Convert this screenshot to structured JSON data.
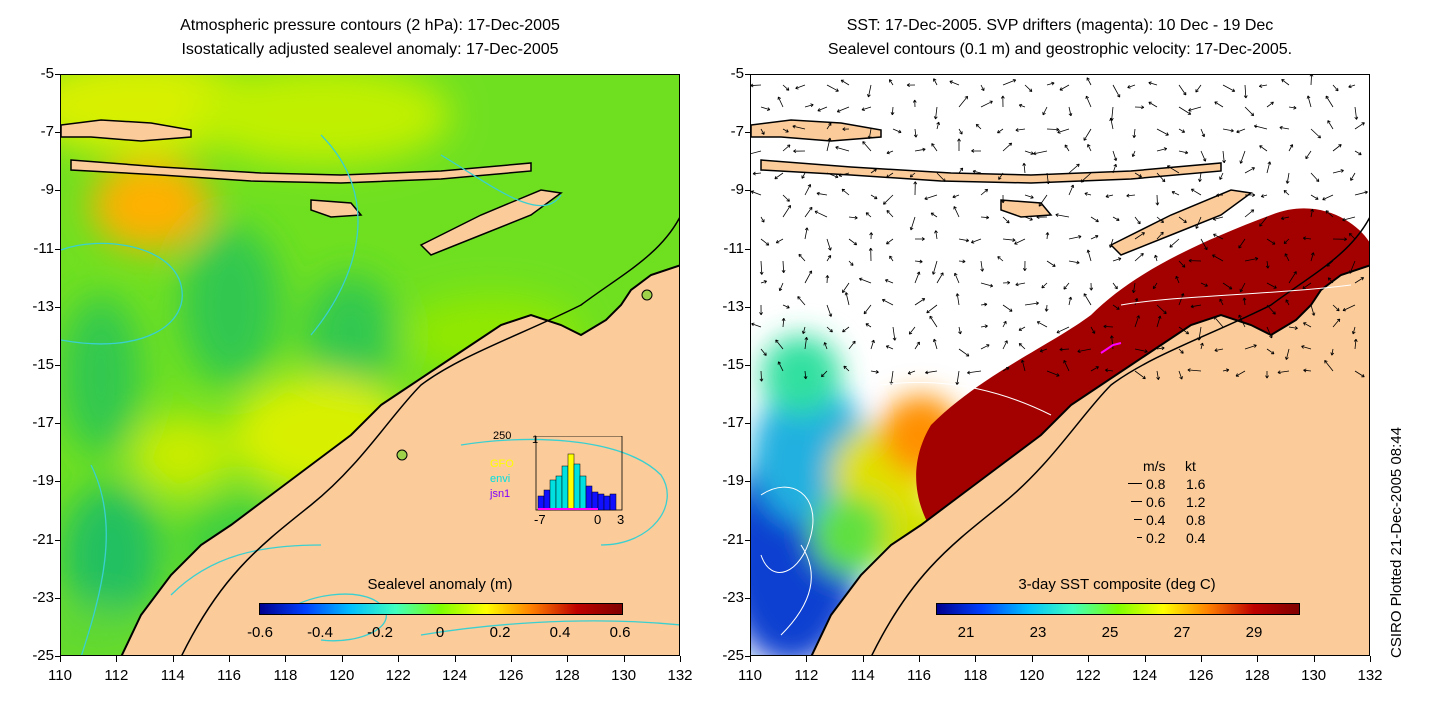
{
  "left_panel": {
    "title_line1": "Atmospheric pressure contours (2 hPa): 17-Dec-2005",
    "title_line2": "Isostatically adjusted sealevel anomaly: 17-Dec-2005",
    "colorbar": {
      "label": "Sealevel anomaly (m)",
      "ticks": [
        "-0.6",
        "-0.4",
        "-0.2",
        "0",
        "0.2",
        "0.4",
        "0.6"
      ],
      "colors": [
        "#00008f",
        "#0040ff",
        "#00bfff",
        "#40ffbf",
        "#7fff00",
        "#ffff00",
        "#ff8000",
        "#bf0000",
        "#800000"
      ]
    },
    "inset": {
      "count_label": "250",
      "y_top_label": "1",
      "sat_labels": [
        "GFO",
        "envi",
        "jsn1"
      ],
      "sat_colors": [
        "#ffff00",
        "#00e0e0",
        "#8000ff"
      ],
      "x_labels": [
        "-7",
        "0",
        "3"
      ]
    }
  },
  "right_panel": {
    "title_line1": "SST: 17-Dec-2005. SVP drifters (magenta): 10 Dec - 19 Dec",
    "title_line2": "Sealevel contours (0.1 m) and geostrophic velocity: 17-Dec-2005.",
    "colorbar": {
      "label": "3-day SST composite (deg C)",
      "ticks": [
        "21",
        "23",
        "25",
        "27",
        "29"
      ],
      "colors": [
        "#00008f",
        "#0040ff",
        "#00bfff",
        "#40ffbf",
        "#7fff00",
        "#ffff00",
        "#ff8000",
        "#bf0000",
        "#800000"
      ]
    },
    "velocity_legend": {
      "header_ms": "m/s",
      "header_kt": "kt",
      "rows": [
        {
          "ms": "0.8",
          "kt": "1.6"
        },
        {
          "ms": "0.6",
          "kt": "1.2"
        },
        {
          "ms": "0.4",
          "kt": "0.8"
        },
        {
          "ms": "0.2",
          "kt": "0.4"
        }
      ]
    }
  },
  "axes": {
    "y_ticks": [
      "-5",
      "-7",
      "-9",
      "-11",
      "-13",
      "-15",
      "-17",
      "-19",
      "-21",
      "-23",
      "-25"
    ],
    "x_ticks": [
      "110",
      "112",
      "114",
      "116",
      "118",
      "120",
      "122",
      "124",
      "126",
      "128",
      "130",
      "132"
    ],
    "lon_range": [
      110,
      132
    ],
    "lat_range": [
      -25,
      -5
    ]
  },
  "credit": "CSIRO Plotted 21-Dec-2005 08:44",
  "colors": {
    "land": "#fbcb9a",
    "coast": "#000000",
    "pressure_contour": "#3ad0d0",
    "sst_warm": "#a30000",
    "no_data": "#ffffff"
  }
}
